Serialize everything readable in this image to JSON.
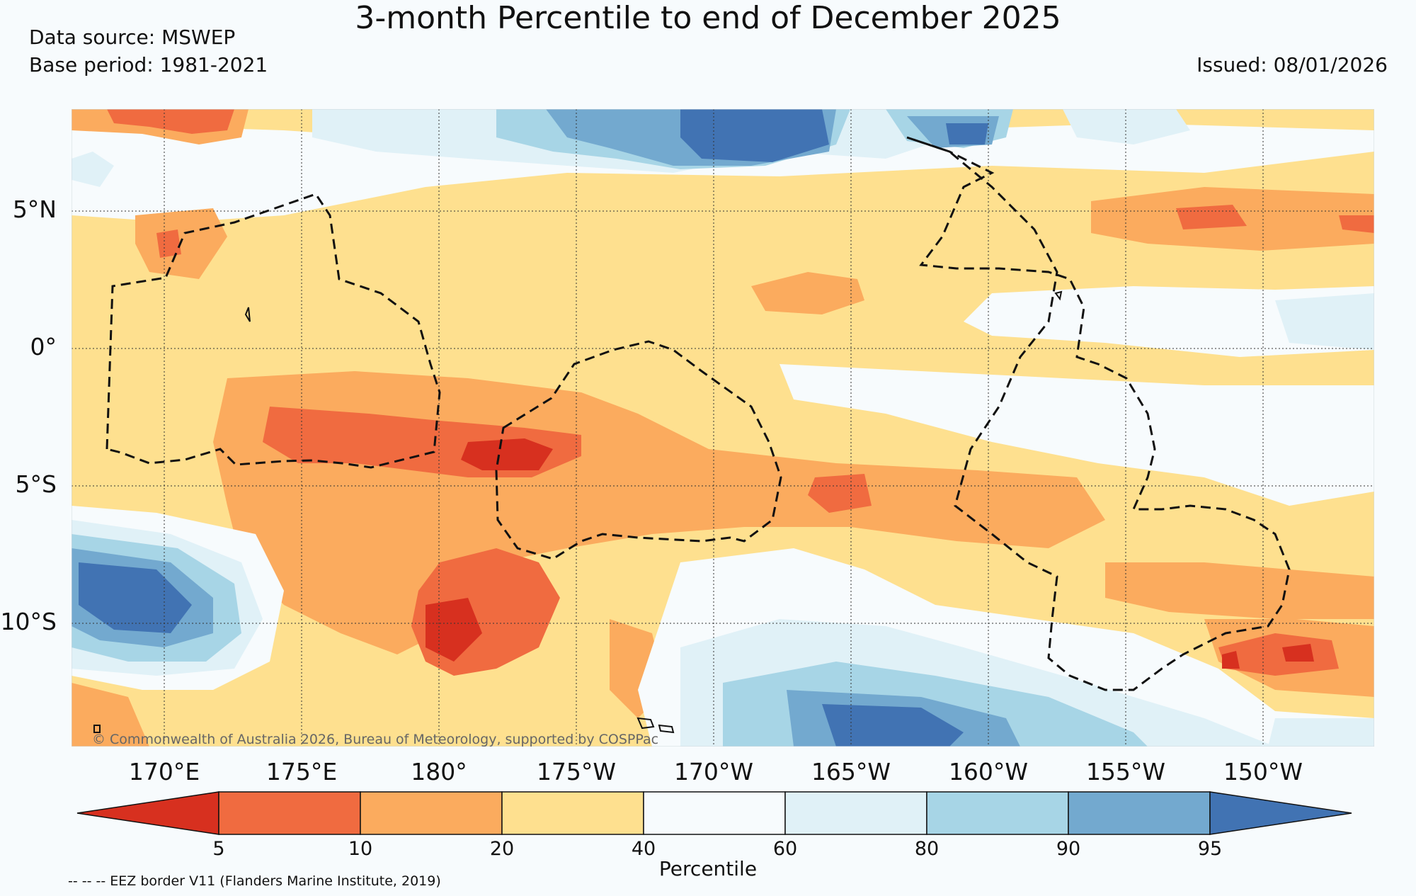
{
  "header": {
    "title": "3-month Percentile to end of December 2025",
    "data_source": "Data source: MSWEP",
    "base_period": "Base period: 1981-2021",
    "issued": "Issued: 08/01/2026"
  },
  "map": {
    "lat_labels": [
      "5°N",
      "0°",
      "5°S",
      "10°S"
    ],
    "lon_labels": [
      "170°E",
      "175°E",
      "180°",
      "175°W",
      "170°W",
      "165°W",
      "160°W",
      "155°W",
      "150°W"
    ],
    "copyright": "© Commonwealth of Australia 2026, Bureau of Meteorology, supported by COSPPac"
  },
  "colorbar": {
    "title": "Percentile",
    "ticks": [
      "5",
      "10",
      "20",
      "40",
      "60",
      "80",
      "90",
      "95"
    ],
    "colors": [
      "#d7301f",
      "#f06b40",
      "#fbab5e",
      "#fee08f",
      "#f7fbfd",
      "#e0f1f7",
      "#a7d5e6",
      "#73a9cf",
      "#4173b3"
    ]
  },
  "legend": {
    "eez_note": "-- -- -- EEZ border V11 (Flanders Marine Institute, 2019)"
  }
}
